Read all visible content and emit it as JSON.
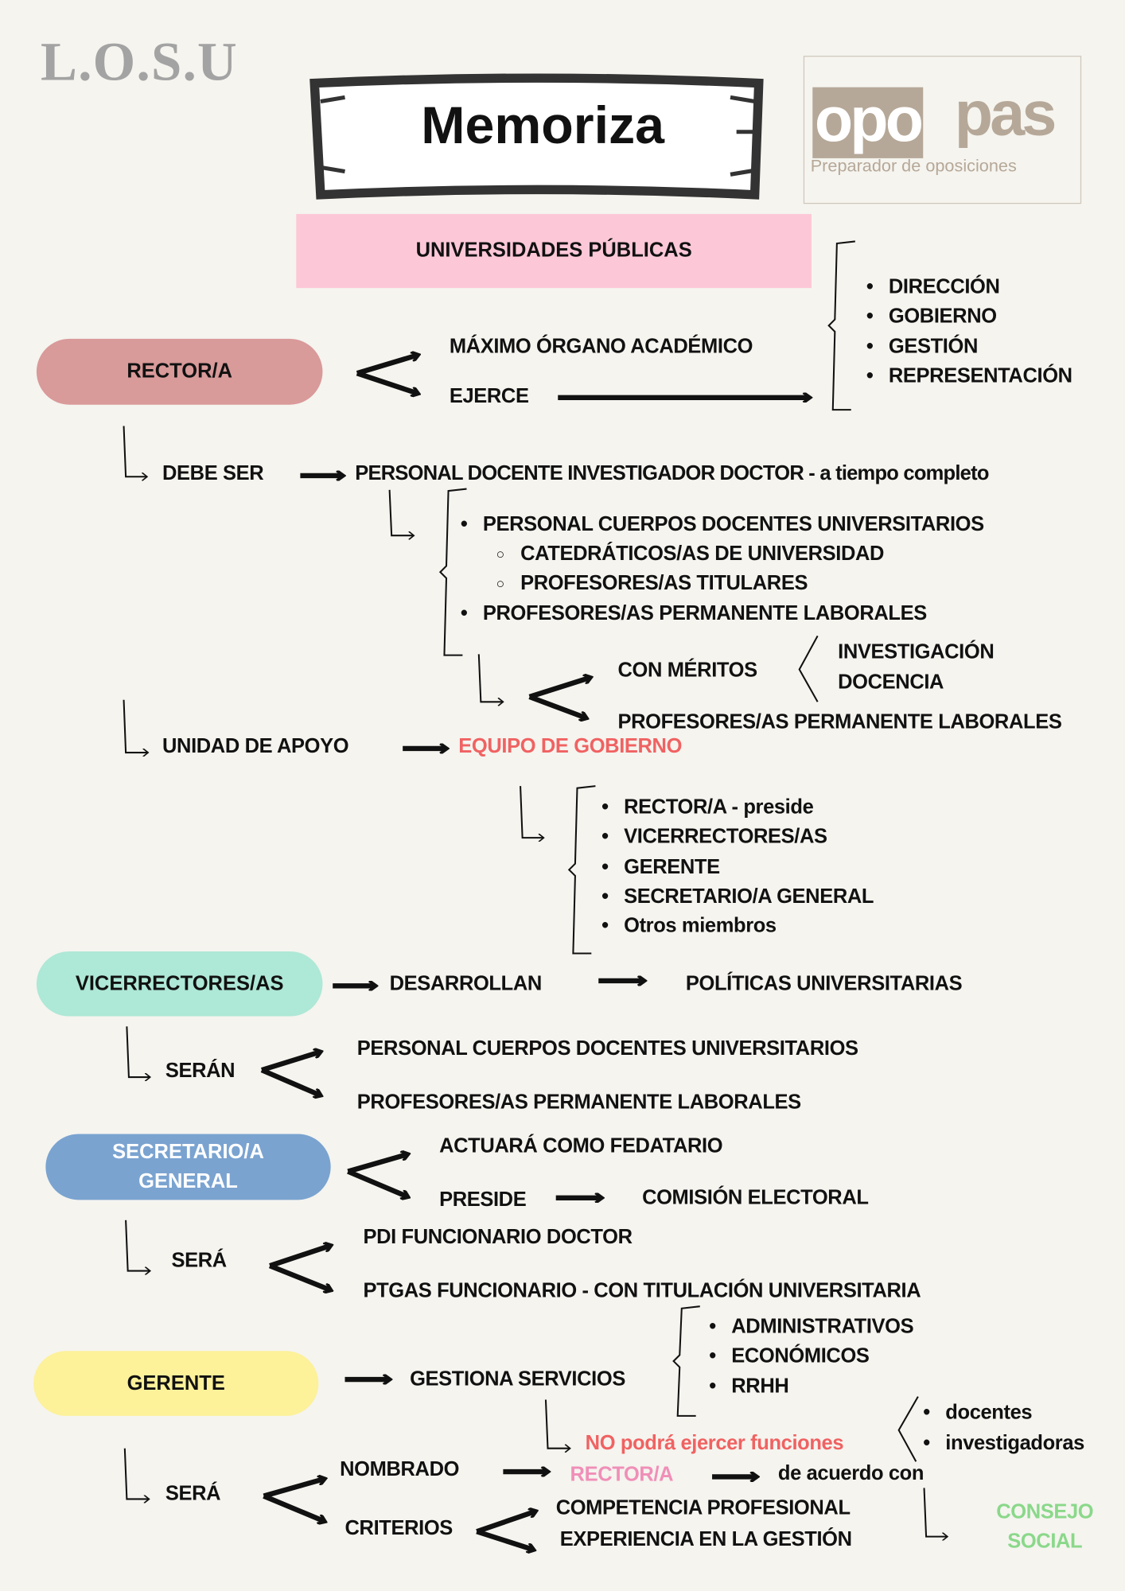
{
  "header": {
    "losu": "L.O.S.U",
    "title": "Memoriza",
    "logo_left": "opo",
    "logo_right": "pas",
    "logo_tagline": "Preparador de oposiciones"
  },
  "topic": "UNIVERSIDADES PÚBLICAS",
  "colors": {
    "background": "#f5f4ef",
    "rector": "#d99a9a",
    "vicerrectores": "#aee8d6",
    "secretario": "#7aa3d0",
    "gerente": "#fdf19a",
    "pink_box": "#fcc8d8",
    "red_text": "#f06262",
    "pink_text": "#f08fb8",
    "green_text": "#8ad88a",
    "logo": "#b6a898"
  },
  "rector": {
    "label": "RECTOR/A",
    "maximo": "MÁXIMO ÓRGANO ACADÉMICO",
    "ejerce": "EJERCE",
    "funciones": [
      "DIRECCIÓN",
      "GOBIERNO",
      "GESTIÓN",
      "REPRESENTACIÓN"
    ],
    "debe_ser": "DEBE SER",
    "personal": "PERSONAL DOCENTE INVESTIGADOR DOCTOR - a tiempo completo",
    "cuerpos": "PERSONAL CUERPOS DOCENTES UNIVERSITARIOS",
    "sub": [
      "CATEDRÁTICOS/AS DE UNIVERSIDAD",
      "PROFESORES/AS TITULARES"
    ],
    "permanentes": "PROFESORES/AS PERMANENTE LABORALES",
    "con_meritos": "CON MÉRITOS",
    "meritos": [
      "INVESTIGACIÓN",
      "DOCENCIA"
    ],
    "permanentes2": "PROFESORES/AS PERMANENTE LABORALES",
    "unidad": "UNIDAD DE APOYO",
    "equipo": "EQUIPO DE GOBIERNO",
    "equipo_miembros": [
      "RECTOR/A - preside",
      "VICERRECTORES/AS",
      "GERENTE",
      "SECRETARIO/A GENERAL",
      "Otros miembros"
    ]
  },
  "vicerrectores": {
    "label": "VICERRECTORES/AS",
    "desarrollan": "DESARROLLAN",
    "politicas": "POLÍTICAS UNIVERSITARIAS",
    "seran": "SERÁN",
    "opciones": [
      "PERSONAL CUERPOS DOCENTES UNIVERSITARIOS",
      "PROFESORES/AS PERMANENTE LABORALES"
    ]
  },
  "secretario": {
    "label_1": "SECRETARIO/A",
    "label_2": "GENERAL",
    "fedatario": "ACTUARÁ COMO FEDATARIO",
    "preside": "PRESIDE",
    "comision": "COMISIÓN ELECTORAL",
    "sera": "SERÁ",
    "opciones": [
      "PDI FUNCIONARIO DOCTOR",
      "PTGAS FUNCIONARIO - CON TITULACIÓN UNIVERSITARIA"
    ]
  },
  "gerente": {
    "label": "GERENTE",
    "gestiona": "GESTIONA SERVICIOS",
    "servicios": [
      "ADMINISTRATIVOS",
      "ECONÓMICOS",
      "RRHH"
    ],
    "no_podra": "NO podrá ejercer funciones",
    "funciones": [
      "docentes",
      "investigadoras"
    ],
    "sera": "SERÁ",
    "nombrado": "NOMBRADO",
    "rector": "RECTOR/A",
    "de_acuerdo": "de acuerdo con",
    "consejo_1": "CONSEJO",
    "consejo_2": "SOCIAL",
    "criterios": "CRITERIOS",
    "criterios_list": [
      "COMPETENCIA PROFESIONAL",
      "EXPERIENCIA EN LA GESTIÓN"
    ]
  }
}
